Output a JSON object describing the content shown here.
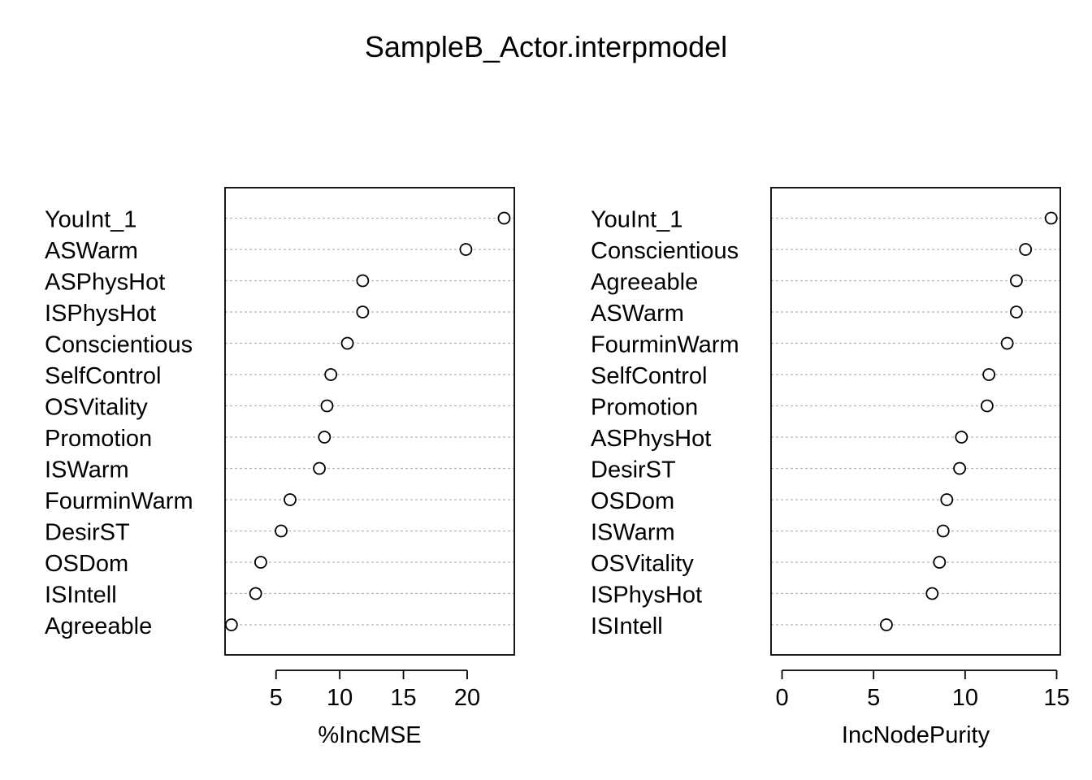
{
  "title": "SampleB_Actor.interpmodel",
  "chart_data": [
    {
      "type": "scatter",
      "xlabel": "%IncMSE",
      "xticks": [
        5,
        10,
        15,
        20
      ],
      "xlim": [
        1.0,
        23.7
      ],
      "grid": "horizontal dotted",
      "categories": [
        "YouInt_1",
        "ASWarm",
        "ASPhysHot",
        "ISPhysHot",
        "Conscientious",
        "SelfControl",
        "OSVitality",
        "Promotion",
        "ISWarm",
        "FourminWarm",
        "DesirST",
        "OSDom",
        "ISIntell",
        "Agreeable"
      ],
      "values": [
        22.9,
        19.9,
        11.8,
        11.8,
        10.6,
        9.3,
        9.0,
        8.8,
        8.4,
        6.1,
        5.4,
        3.8,
        3.4,
        1.5
      ]
    },
    {
      "type": "scatter",
      "xlabel": "IncNodePurity",
      "xticks": [
        0,
        5,
        10,
        15
      ],
      "xlim": [
        -0.6,
        15.2
      ],
      "grid": "horizontal dotted",
      "categories": [
        "YouInt_1",
        "Conscientious",
        "Agreeable",
        "ASWarm",
        "FourminWarm",
        "SelfControl",
        "Promotion",
        "ASPhysHot",
        "DesirST",
        "OSDom",
        "ISWarm",
        "OSVitality",
        "ISPhysHot",
        "ISIntell"
      ],
      "values": [
        14.7,
        13.3,
        12.8,
        12.8,
        12.3,
        11.3,
        11.2,
        9.8,
        9.7,
        9.0,
        8.8,
        8.6,
        8.2,
        5.7
      ]
    }
  ]
}
